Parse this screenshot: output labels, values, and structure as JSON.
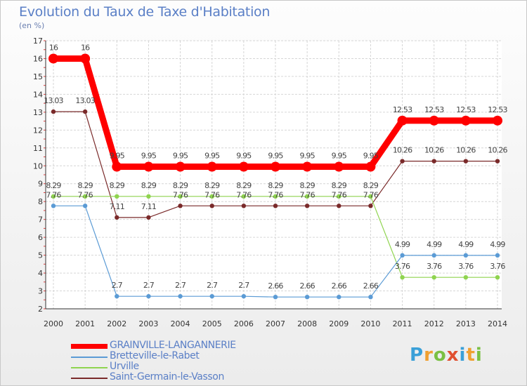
{
  "title": "Evolution du Taux de Taxe d'Habitation",
  "unit": "(en %)",
  "logo": [
    "P",
    "r",
    "o",
    "x",
    "i",
    "t",
    "i"
  ],
  "logo_colors": [
    "#3aa0d8",
    "#f0a030",
    "#7ac043",
    "#e05030",
    "#3aa0d8",
    "#f0a030",
    "#7ac043"
  ],
  "chart_data": {
    "type": "line",
    "title": "Evolution du Taux de Taxe d'Habitation",
    "ylabel": "(en %)",
    "x": [
      "2000",
      "2001",
      "2002",
      "2003",
      "2004",
      "2005",
      "2006",
      "2007",
      "2008",
      "2009",
      "2010",
      "2011",
      "2012",
      "2013",
      "2014"
    ],
    "ylim": [
      2,
      17
    ],
    "yticks": [
      "2",
      "3",
      "4",
      "5",
      "6",
      "7",
      "8",
      "9",
      "10",
      "11",
      "12",
      "13",
      "14",
      "15",
      "16",
      "17"
    ],
    "grid": true,
    "series": [
      {
        "name": "GRAINVILLE-LANGANNERIE",
        "color": "#ff0000",
        "values": [
          16,
          16,
          9.95,
          9.95,
          9.95,
          9.95,
          9.95,
          9.95,
          9.95,
          9.95,
          9.95,
          12.53,
          12.53,
          12.53,
          12.53
        ],
        "labels": [
          "16",
          "16",
          "9.95",
          "9.95",
          "9.95",
          "9.95",
          "9.95",
          "9.95",
          "9.95",
          "9.95",
          "9.95",
          "12.53",
          "12.53",
          "12.53",
          "12.53"
        ]
      },
      {
        "name": "Bretteville-le-Rabet",
        "color": "#5b9bd5",
        "values": [
          7.76,
          7.76,
          2.7,
          2.7,
          2.7,
          2.7,
          2.7,
          2.66,
          2.66,
          2.66,
          2.66,
          4.99,
          4.99,
          4.99,
          4.99
        ],
        "labels": [
          "7.76",
          "7.76",
          "2.7",
          "2.7",
          "2.7",
          "2.7",
          "2.7",
          "2.66",
          "2.66",
          "2.66",
          "2.66",
          "4.99",
          "4.99",
          "4.99",
          "4.99"
        ]
      },
      {
        "name": "Urville",
        "color": "#8fd44f",
        "values": [
          8.29,
          8.29,
          8.29,
          8.29,
          8.29,
          8.29,
          8.29,
          8.29,
          8.29,
          8.29,
          8.29,
          3.76,
          3.76,
          3.76,
          3.76
        ],
        "labels": [
          "8.29",
          "8.29",
          "8.29",
          "8.29",
          "8.29",
          "8.29",
          "8.29",
          "8.29",
          "8.29",
          "8.29",
          "8.29",
          "3.76",
          "3.76",
          "3.76",
          "3.76"
        ]
      },
      {
        "name": "Saint-Germain-le-Vasson",
        "color": "#7a2a2a",
        "values": [
          13.03,
          13.03,
          7.11,
          7.11,
          7.76,
          7.76,
          7.76,
          7.76,
          7.76,
          7.76,
          7.76,
          10.26,
          10.26,
          10.26,
          10.26
        ],
        "labels": [
          "13.03",
          "13.03",
          "7.11",
          "7.11",
          "7.76",
          "7.76",
          "7.76",
          "7.76",
          "7.76",
          "7.76",
          "7.76",
          "10.26",
          "10.26",
          "10.26",
          "10.26"
        ]
      }
    ],
    "legend_position": "bottom-left"
  }
}
